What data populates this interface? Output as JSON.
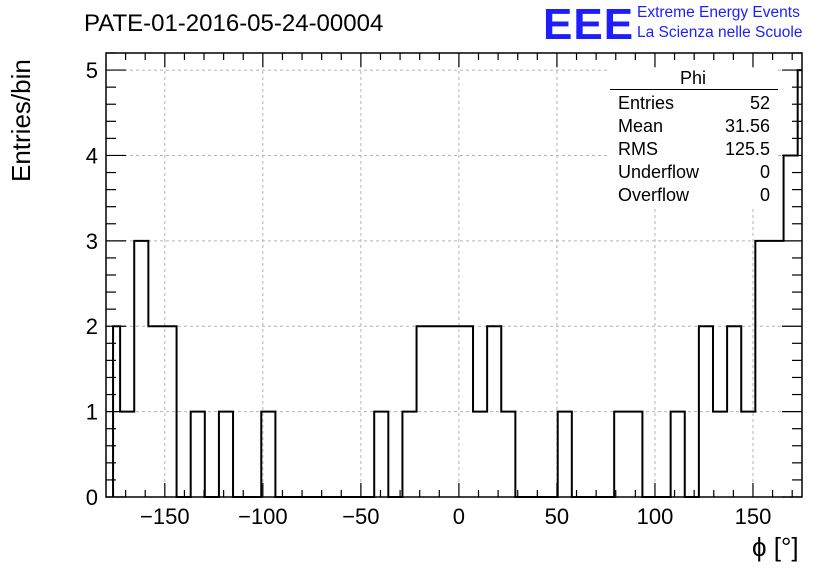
{
  "header": {
    "run_title": "PATE-01-2016-05-24-00004",
    "logo_text": "EEE",
    "logo_line1": "Extreme Energy Events",
    "logo_line2": "La Scienza nelle Scuole",
    "accent_color": "#1d1dff"
  },
  "stats_box": {
    "title": "Phi",
    "rows": [
      {
        "name": "Entries",
        "value": "52"
      },
      {
        "name": "Mean",
        "value": "31.56"
      },
      {
        "name": "RMS",
        "value": "125.5"
      },
      {
        "name": "Underflow",
        "value": "0"
      },
      {
        "name": "Overflow",
        "value": "0"
      }
    ]
  },
  "chart_data": {
    "type": "histogram",
    "xlabel": "ϕ [°]",
    "ylabel": "Entries/bin",
    "xlim": [
      -180,
      175
    ],
    "ylim": [
      0,
      5.2
    ],
    "grid": true,
    "bin_width": 7.2,
    "x_ticks": [
      -150,
      -100,
      -50,
      0,
      50,
      100,
      150
    ],
    "x_tick_labels": [
      "−150",
      "−100",
      "−50",
      "0",
      "50",
      "100",
      "150"
    ],
    "y_ticks": [
      0,
      1,
      2,
      3,
      4,
      5
    ],
    "y_tick_labels": [
      "0",
      "1",
      "2",
      "3",
      "4",
      "5"
    ],
    "bins": [
      {
        "x_low": -176.4,
        "x_high": -172.8,
        "count": 2
      },
      {
        "x_low": -172.8,
        "x_high": -165.6,
        "count": 1
      },
      {
        "x_low": -165.6,
        "x_high": -158.4,
        "count": 3
      },
      {
        "x_low": -158.4,
        "x_high": -144.0,
        "count": 2
      },
      {
        "x_low": -144.0,
        "x_high": -136.8,
        "count": 0
      },
      {
        "x_low": -136.8,
        "x_high": -129.6,
        "count": 1
      },
      {
        "x_low": -129.6,
        "x_high": -122.4,
        "count": 0
      },
      {
        "x_low": -122.4,
        "x_high": -115.2,
        "count": 1
      },
      {
        "x_low": -115.2,
        "x_high": -100.8,
        "count": 0
      },
      {
        "x_low": -100.8,
        "x_high": -93.6,
        "count": 1
      },
      {
        "x_low": -93.6,
        "x_high": -43.2,
        "count": 0
      },
      {
        "x_low": -43.2,
        "x_high": -36.0,
        "count": 1
      },
      {
        "x_low": -36.0,
        "x_high": -28.8,
        "count": 0
      },
      {
        "x_low": -28.8,
        "x_high": -21.6,
        "count": 1
      },
      {
        "x_low": -21.6,
        "x_high": 7.2,
        "count": 2
      },
      {
        "x_low": 7.2,
        "x_high": 14.4,
        "count": 1
      },
      {
        "x_low": 14.4,
        "x_high": 21.6,
        "count": 2
      },
      {
        "x_low": 21.6,
        "x_high": 28.8,
        "count": 1
      },
      {
        "x_low": 28.8,
        "x_high": 50.4,
        "count": 0
      },
      {
        "x_low": 50.4,
        "x_high": 57.6,
        "count": 1
      },
      {
        "x_low": 57.6,
        "x_high": 79.2,
        "count": 0
      },
      {
        "x_low": 79.2,
        "x_high": 93.6,
        "count": 1
      },
      {
        "x_low": 93.6,
        "x_high": 108.0,
        "count": 0
      },
      {
        "x_low": 108.0,
        "x_high": 115.2,
        "count": 1
      },
      {
        "x_low": 115.2,
        "x_high": 122.4,
        "count": 0
      },
      {
        "x_low": 122.4,
        "x_high": 129.6,
        "count": 2
      },
      {
        "x_low": 129.6,
        "x_high": 136.8,
        "count": 1
      },
      {
        "x_low": 136.8,
        "x_high": 144.0,
        "count": 2
      },
      {
        "x_low": 144.0,
        "x_high": 151.2,
        "count": 1
      },
      {
        "x_low": 151.2,
        "x_high": 165.6,
        "count": 3
      },
      {
        "x_low": 165.6,
        "x_high": 172.8,
        "count": 4
      },
      {
        "x_low": 172.8,
        "x_high": 175.0,
        "count": 5
      }
    ]
  }
}
